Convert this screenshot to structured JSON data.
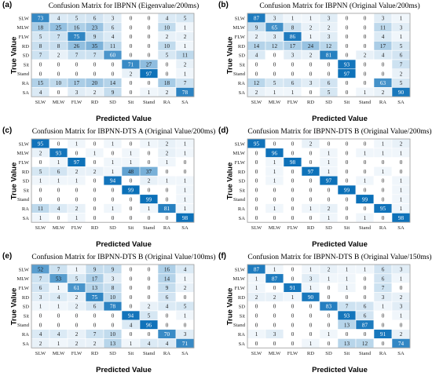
{
  "classes": [
    "SLW",
    "MLW",
    "FLW",
    "RD",
    "SD",
    "Sit",
    "Stand",
    "RA",
    "SA"
  ],
  "xlabel": "Predicted Value",
  "ylabel": "True Value",
  "color_high": "#0a6fb8",
  "color_low": "#ffffff",
  "chart_data": [
    {
      "type": "heatmap",
      "panel_label": "(a)",
      "title": "Confusion Matrix for IBPNN (Eigenvalue/200ms)",
      "matrix": [
        [
          73,
          4,
          5,
          6,
          3,
          0,
          0,
          4,
          5
        ],
        [
          18,
          25,
          16,
          23,
          6,
          0,
          0,
          10,
          1
        ],
        [
          5,
          7,
          75,
          9,
          4,
          0,
          0,
          2,
          2
        ],
        [
          8,
          8,
          26,
          35,
          11,
          0,
          0,
          10,
          1
        ],
        [
          7,
          2,
          7,
          7,
          60,
          0,
          0,
          5,
          11
        ],
        [
          0,
          0,
          0,
          0,
          0,
          71,
          27,
          0,
          2
        ],
        [
          0,
          0,
          0,
          0,
          0,
          2,
          97,
          0,
          1
        ],
        [
          15,
          10,
          17,
          20,
          14,
          0,
          0,
          18,
          7
        ],
        [
          4,
          0,
          3,
          2,
          9,
          0,
          1,
          2,
          78
        ]
      ]
    },
    {
      "type": "heatmap",
      "panel_label": "(b)",
      "title": "Confusion Matrix for IBPNN (Original Value/200ms)",
      "matrix": [
        [
          87,
          3,
          1,
          1,
          3,
          0,
          0,
          3,
          1
        ],
        [
          9,
          65,
          8,
          2,
          2,
          0,
          0,
          11,
          3
        ],
        [
          2,
          3,
          86,
          1,
          3,
          0,
          0,
          4,
          1
        ],
        [
          14,
          12,
          17,
          24,
          12,
          0,
          0,
          17,
          5
        ],
        [
          4,
          0,
          3,
          2,
          81,
          0,
          2,
          4,
          6
        ],
        [
          0,
          0,
          0,
          0,
          0,
          93,
          0,
          0,
          7
        ],
        [
          0,
          0,
          0,
          0,
          0,
          97,
          0,
          0,
          2
        ],
        [
          12,
          5,
          6,
          3,
          6,
          0,
          0,
          63,
          5
        ],
        [
          2,
          1,
          1,
          0,
          5,
          0,
          1,
          2,
          90
        ]
      ]
    },
    {
      "type": "heatmap",
      "panel_label": "(c)",
      "title": "Confusion Matrix for IBPNN-DTS A (Original Value/200ms)",
      "matrix": [
        [
          95,
          0,
          1,
          0,
          1,
          0,
          1,
          2,
          1
        ],
        [
          2,
          93,
          0,
          1,
          0,
          1,
          0,
          2,
          1
        ],
        [
          0,
          1,
          97,
          0,
          1,
          1,
          0,
          1,
          0
        ],
        [
          5,
          6,
          2,
          2,
          1,
          48,
          37,
          0,
          0
        ],
        [
          1,
          1,
          1,
          0,
          94,
          0,
          2,
          1,
          1
        ],
        [
          0,
          0,
          0,
          0,
          0,
          99,
          0,
          0,
          1
        ],
        [
          0,
          0,
          0,
          0,
          0,
          0,
          99,
          0,
          1
        ],
        [
          11,
          4,
          2,
          0,
          1,
          0,
          1,
          81,
          1
        ],
        [
          1,
          0,
          1,
          0,
          0,
          0,
          0,
          0,
          98
        ]
      ]
    },
    {
      "type": "heatmap",
      "panel_label": "(d)",
      "title": "Confusion Matrix for IBPNN-DTS B (Original Value/200ms)",
      "matrix": [
        [
          95,
          0,
          0,
          2,
          0,
          0,
          0,
          1,
          2
        ],
        [
          0,
          96,
          0,
          0,
          1,
          0,
          1,
          1,
          1
        ],
        [
          0,
          1,
          98,
          0,
          1,
          0,
          0,
          0,
          0
        ],
        [
          0,
          1,
          0,
          97,
          1,
          0,
          0,
          1,
          0
        ],
        [
          0,
          1,
          0,
          0,
          97,
          0,
          1,
          0,
          1
        ],
        [
          0,
          0,
          0,
          0,
          0,
          99,
          0,
          0,
          1
        ],
        [
          0,
          0,
          0,
          0,
          0,
          0,
          99,
          0,
          1
        ],
        [
          0,
          1,
          0,
          1,
          2,
          0,
          0,
          95,
          1
        ],
        [
          0,
          0,
          0,
          0,
          1,
          0,
          1,
          0,
          98
        ]
      ]
    },
    {
      "type": "heatmap",
      "panel_label": "(e)",
      "title": "Confusion Matrix for IBPNN-DTS B (Original Value/100ms)",
      "matrix": [
        [
          52,
          7,
          1,
          9,
          9,
          0,
          0,
          16,
          4
        ],
        [
          7,
          53,
          5,
          17,
          3,
          0,
          0,
          14,
          1
        ],
        [
          6,
          1,
          61,
          13,
          8,
          0,
          0,
          9,
          2
        ],
        [
          3,
          4,
          2,
          75,
          10,
          0,
          0,
          6,
          0
        ],
        [
          1,
          1,
          2,
          6,
          78,
          0,
          2,
          4,
          5
        ],
        [
          0,
          0,
          0,
          0,
          0,
          94,
          5,
          0,
          1
        ],
        [
          0,
          0,
          0,
          0,
          0,
          4,
          96,
          0,
          0
        ],
        [
          4,
          4,
          2,
          7,
          10,
          0,
          0,
          70,
          3
        ],
        [
          2,
          1,
          2,
          2,
          13,
          1,
          4,
          4,
          71
        ]
      ]
    },
    {
      "type": "heatmap",
      "panel_label": "(f)",
      "title": "Confusion Matrix for IBPNN-DTS B (Original Value/150ms)",
      "matrix": [
        [
          87,
          1,
          0,
          1,
          2,
          1,
          1,
          6,
          3
        ],
        [
          1,
          87,
          0,
          3,
          1,
          1,
          0,
          6,
          1
        ],
        [
          1,
          0,
          91,
          1,
          0,
          1,
          0,
          7,
          0
        ],
        [
          2,
          2,
          1,
          90,
          0,
          0,
          0,
          3,
          2
        ],
        [
          0,
          0,
          0,
          0,
          83,
          7,
          6,
          1,
          3
        ],
        [
          0,
          0,
          0,
          0,
          0,
          93,
          6,
          0,
          1
        ],
        [
          0,
          0,
          0,
          0,
          0,
          13,
          87,
          0,
          0
        ],
        [
          1,
          3,
          0,
          0,
          1,
          0,
          0,
          91,
          2
        ],
        [
          0,
          0,
          0,
          1,
          0,
          13,
          12,
          0,
          74
        ]
      ]
    }
  ]
}
